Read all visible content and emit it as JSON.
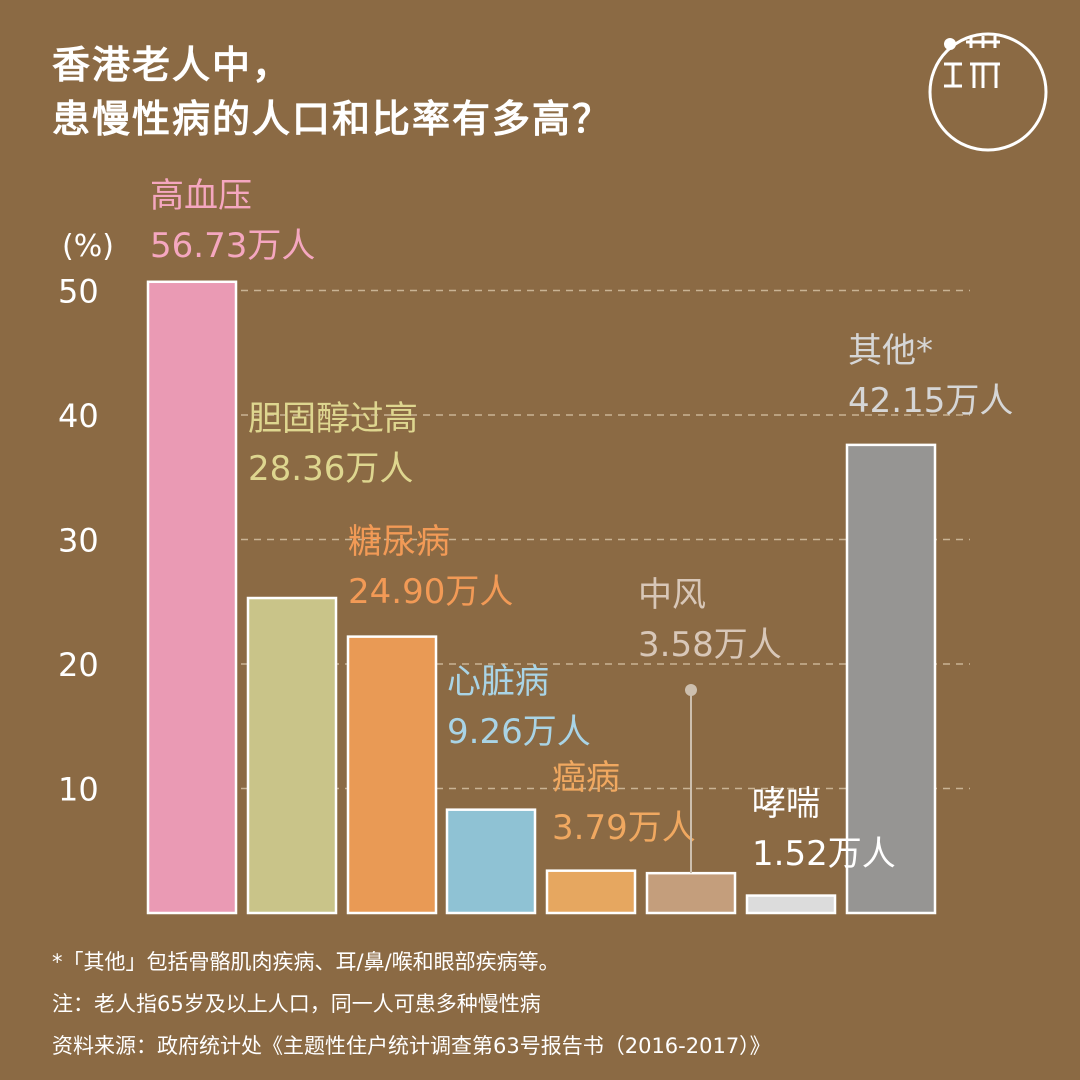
{
  "title": {
    "line1": "香港老人中，",
    "line2": "患慢性病的人口和比率有多高？"
  },
  "chart_data": {
    "type": "bar",
    "y_unit_label": "(%)",
    "ylim": [
      0,
      50
    ],
    "yticks": [
      10,
      20,
      30,
      40,
      50
    ],
    "grid": "dashed horizontal",
    "categories": [
      "高血压",
      "胆固醇过高",
      "糖尿病",
      "心脏病",
      "癌病",
      "中风",
      "哮喘",
      "其他*"
    ],
    "values": [
      50.7,
      25.3,
      22.2,
      8.3,
      3.4,
      3.2,
      1.4,
      37.6
    ],
    "population_labels": [
      "56.73万人",
      "28.36万人",
      "24.90万人",
      "9.26万人",
      "3.79万人",
      "3.58万人",
      "1.52万人",
      "42.15万人"
    ],
    "colors": [
      "#ea9ab4",
      "#c9c489",
      "#e99a55",
      "#8fc2d4",
      "#e6a760",
      "#c49e7c",
      "#dcdcdc",
      "#969593"
    ],
    "label_colors": [
      "#f5a7c0",
      "#ded68f",
      "#f29a56",
      "#a9d4e6",
      "#f0a860",
      "#d8c7b8",
      "#ffffff",
      "#d6d6d6"
    ]
  },
  "footnotes": {
    "other": "*「其他」包括骨骼肌肉疾病、耳/鼻/喉和眼部疾病等。",
    "note": "注：老人指65岁及以上人口，同一人可患多种慢性病",
    "source": "资料来源：政府统计处《主题性住户统计调查第63号报告书（2016-2017）》"
  }
}
